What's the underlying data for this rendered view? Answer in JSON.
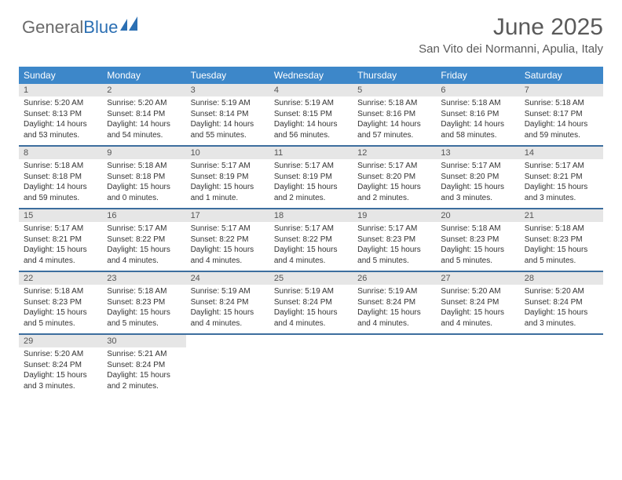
{
  "logo": {
    "part1": "General",
    "part2": "Blue"
  },
  "header": {
    "title": "June 2025",
    "location": "San Vito dei Normanni, Apulia, Italy"
  },
  "colors": {
    "header_bg": "#3d87c9",
    "week_border": "#3d6e9e",
    "daynum_bg": "#e6e6e6"
  },
  "day_names": [
    "Sunday",
    "Monday",
    "Tuesday",
    "Wednesday",
    "Thursday",
    "Friday",
    "Saturday"
  ],
  "weeks": [
    [
      {
        "n": "1",
        "sr": "Sunrise: 5:20 AM",
        "ss": "Sunset: 8:13 PM",
        "d1": "Daylight: 14 hours",
        "d2": "and 53 minutes."
      },
      {
        "n": "2",
        "sr": "Sunrise: 5:20 AM",
        "ss": "Sunset: 8:14 PM",
        "d1": "Daylight: 14 hours",
        "d2": "and 54 minutes."
      },
      {
        "n": "3",
        "sr": "Sunrise: 5:19 AM",
        "ss": "Sunset: 8:14 PM",
        "d1": "Daylight: 14 hours",
        "d2": "and 55 minutes."
      },
      {
        "n": "4",
        "sr": "Sunrise: 5:19 AM",
        "ss": "Sunset: 8:15 PM",
        "d1": "Daylight: 14 hours",
        "d2": "and 56 minutes."
      },
      {
        "n": "5",
        "sr": "Sunrise: 5:18 AM",
        "ss": "Sunset: 8:16 PM",
        "d1": "Daylight: 14 hours",
        "d2": "and 57 minutes."
      },
      {
        "n": "6",
        "sr": "Sunrise: 5:18 AM",
        "ss": "Sunset: 8:16 PM",
        "d1": "Daylight: 14 hours",
        "d2": "and 58 minutes."
      },
      {
        "n": "7",
        "sr": "Sunrise: 5:18 AM",
        "ss": "Sunset: 8:17 PM",
        "d1": "Daylight: 14 hours",
        "d2": "and 59 minutes."
      }
    ],
    [
      {
        "n": "8",
        "sr": "Sunrise: 5:18 AM",
        "ss": "Sunset: 8:18 PM",
        "d1": "Daylight: 14 hours",
        "d2": "and 59 minutes."
      },
      {
        "n": "9",
        "sr": "Sunrise: 5:18 AM",
        "ss": "Sunset: 8:18 PM",
        "d1": "Daylight: 15 hours",
        "d2": "and 0 minutes."
      },
      {
        "n": "10",
        "sr": "Sunrise: 5:17 AM",
        "ss": "Sunset: 8:19 PM",
        "d1": "Daylight: 15 hours",
        "d2": "and 1 minute."
      },
      {
        "n": "11",
        "sr": "Sunrise: 5:17 AM",
        "ss": "Sunset: 8:19 PM",
        "d1": "Daylight: 15 hours",
        "d2": "and 2 minutes."
      },
      {
        "n": "12",
        "sr": "Sunrise: 5:17 AM",
        "ss": "Sunset: 8:20 PM",
        "d1": "Daylight: 15 hours",
        "d2": "and 2 minutes."
      },
      {
        "n": "13",
        "sr": "Sunrise: 5:17 AM",
        "ss": "Sunset: 8:20 PM",
        "d1": "Daylight: 15 hours",
        "d2": "and 3 minutes."
      },
      {
        "n": "14",
        "sr": "Sunrise: 5:17 AM",
        "ss": "Sunset: 8:21 PM",
        "d1": "Daylight: 15 hours",
        "d2": "and 3 minutes."
      }
    ],
    [
      {
        "n": "15",
        "sr": "Sunrise: 5:17 AM",
        "ss": "Sunset: 8:21 PM",
        "d1": "Daylight: 15 hours",
        "d2": "and 4 minutes."
      },
      {
        "n": "16",
        "sr": "Sunrise: 5:17 AM",
        "ss": "Sunset: 8:22 PM",
        "d1": "Daylight: 15 hours",
        "d2": "and 4 minutes."
      },
      {
        "n": "17",
        "sr": "Sunrise: 5:17 AM",
        "ss": "Sunset: 8:22 PM",
        "d1": "Daylight: 15 hours",
        "d2": "and 4 minutes."
      },
      {
        "n": "18",
        "sr": "Sunrise: 5:17 AM",
        "ss": "Sunset: 8:22 PM",
        "d1": "Daylight: 15 hours",
        "d2": "and 4 minutes."
      },
      {
        "n": "19",
        "sr": "Sunrise: 5:17 AM",
        "ss": "Sunset: 8:23 PM",
        "d1": "Daylight: 15 hours",
        "d2": "and 5 minutes."
      },
      {
        "n": "20",
        "sr": "Sunrise: 5:18 AM",
        "ss": "Sunset: 8:23 PM",
        "d1": "Daylight: 15 hours",
        "d2": "and 5 minutes."
      },
      {
        "n": "21",
        "sr": "Sunrise: 5:18 AM",
        "ss": "Sunset: 8:23 PM",
        "d1": "Daylight: 15 hours",
        "d2": "and 5 minutes."
      }
    ],
    [
      {
        "n": "22",
        "sr": "Sunrise: 5:18 AM",
        "ss": "Sunset: 8:23 PM",
        "d1": "Daylight: 15 hours",
        "d2": "and 5 minutes."
      },
      {
        "n": "23",
        "sr": "Sunrise: 5:18 AM",
        "ss": "Sunset: 8:23 PM",
        "d1": "Daylight: 15 hours",
        "d2": "and 5 minutes."
      },
      {
        "n": "24",
        "sr": "Sunrise: 5:19 AM",
        "ss": "Sunset: 8:24 PM",
        "d1": "Daylight: 15 hours",
        "d2": "and 4 minutes."
      },
      {
        "n": "25",
        "sr": "Sunrise: 5:19 AM",
        "ss": "Sunset: 8:24 PM",
        "d1": "Daylight: 15 hours",
        "d2": "and 4 minutes."
      },
      {
        "n": "26",
        "sr": "Sunrise: 5:19 AM",
        "ss": "Sunset: 8:24 PM",
        "d1": "Daylight: 15 hours",
        "d2": "and 4 minutes."
      },
      {
        "n": "27",
        "sr": "Sunrise: 5:20 AM",
        "ss": "Sunset: 8:24 PM",
        "d1": "Daylight: 15 hours",
        "d2": "and 4 minutes."
      },
      {
        "n": "28",
        "sr": "Sunrise: 5:20 AM",
        "ss": "Sunset: 8:24 PM",
        "d1": "Daylight: 15 hours",
        "d2": "and 3 minutes."
      }
    ],
    [
      {
        "n": "29",
        "sr": "Sunrise: 5:20 AM",
        "ss": "Sunset: 8:24 PM",
        "d1": "Daylight: 15 hours",
        "d2": "and 3 minutes."
      },
      {
        "n": "30",
        "sr": "Sunrise: 5:21 AM",
        "ss": "Sunset: 8:24 PM",
        "d1": "Daylight: 15 hours",
        "d2": "and 2 minutes."
      },
      null,
      null,
      null,
      null,
      null
    ]
  ]
}
